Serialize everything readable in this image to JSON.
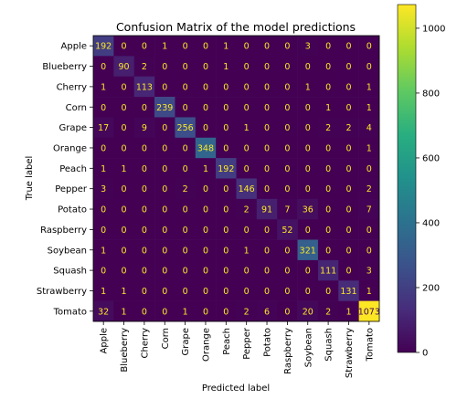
{
  "chart_data": {
    "type": "heatmap",
    "title": "Confusion Matrix of the model predictions",
    "xlabel": "Predicted label",
    "ylabel": "True label",
    "labels": [
      "Apple",
      "Blueberry",
      "Cherry",
      "Corn",
      "Grape",
      "Orange",
      "Peach",
      "Pepper",
      "Potato",
      "Raspberry",
      "Soybean",
      "Squash",
      "Strawberry",
      "Tomato"
    ],
    "matrix": [
      [
        192,
        0,
        0,
        1,
        0,
        0,
        1,
        0,
        0,
        0,
        3,
        0,
        0,
        0
      ],
      [
        0,
        90,
        2,
        0,
        0,
        0,
        1,
        0,
        0,
        0,
        0,
        0,
        0,
        0
      ],
      [
        1,
        0,
        113,
        0,
        0,
        0,
        0,
        0,
        0,
        0,
        1,
        0,
        0,
        1
      ],
      [
        0,
        0,
        0,
        239,
        0,
        0,
        0,
        0,
        0,
        0,
        0,
        1,
        0,
        1
      ],
      [
        17,
        0,
        9,
        0,
        256,
        0,
        0,
        1,
        0,
        0,
        0,
        2,
        2,
        4
      ],
      [
        0,
        0,
        0,
        0,
        0,
        348,
        0,
        0,
        0,
        0,
        0,
        0,
        0,
        1
      ],
      [
        1,
        1,
        0,
        0,
        0,
        1,
        192,
        0,
        0,
        0,
        0,
        0,
        0,
        0
      ],
      [
        3,
        0,
        0,
        0,
        2,
        0,
        0,
        146,
        0,
        0,
        0,
        0,
        0,
        2
      ],
      [
        0,
        0,
        0,
        0,
        0,
        0,
        0,
        2,
        91,
        7,
        36,
        0,
        0,
        7
      ],
      [
        0,
        0,
        0,
        0,
        0,
        0,
        0,
        0,
        0,
        52,
        0,
        0,
        0,
        0
      ],
      [
        1,
        0,
        0,
        0,
        0,
        0,
        0,
        1,
        0,
        0,
        321,
        0,
        0,
        0
      ],
      [
        0,
        0,
        0,
        0,
        0,
        0,
        0,
        0,
        0,
        0,
        0,
        111,
        0,
        3
      ],
      [
        1,
        1,
        0,
        0,
        0,
        0,
        0,
        0,
        0,
        0,
        0,
        0,
        131,
        1
      ],
      [
        32,
        1,
        0,
        0,
        1,
        0,
        0,
        2,
        6,
        0,
        20,
        2,
        1,
        1073
      ]
    ],
    "colorbar": {
      "ticks": [
        0,
        200,
        400,
        600,
        800,
        1000
      ],
      "range": [
        0,
        1073
      ],
      "colormap": "viridis"
    }
  }
}
